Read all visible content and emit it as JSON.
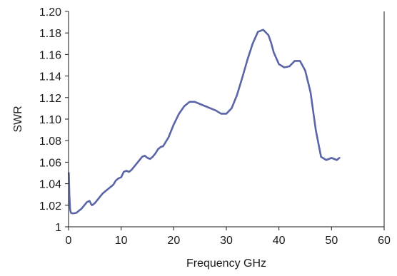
{
  "chart_data": {
    "type": "line",
    "xlabel": "Frequency GHz",
    "ylabel": "SWR",
    "xlim": [
      0,
      60
    ],
    "ylim": [
      1.0,
      1.2
    ],
    "xticks": [
      0,
      10,
      20,
      30,
      40,
      50,
      60
    ],
    "yticks": [
      1,
      1.02,
      1.04,
      1.06,
      1.08,
      1.1,
      1.12,
      1.14,
      1.16,
      1.18,
      1.2
    ],
    "ytick_labels": [
      "1",
      "1.02",
      "1.04",
      "1.06",
      "1.08",
      "1.10",
      "1.12",
      "1.14",
      "1.16",
      "1.18",
      "1.20"
    ],
    "grid": false,
    "legend": "none",
    "series": [
      {
        "color": "#5a65a8",
        "x": [
          0.05,
          0.15,
          0.3,
          0.45,
          0.7,
          1.0,
          1.5,
          2.0,
          2.5,
          3.0,
          3.5,
          4.0,
          4.3,
          4.5,
          5.0,
          5.5,
          6.0,
          6.5,
          7.0,
          7.5,
          8.0,
          8.5,
          9.0,
          9.5,
          10.0,
          10.5,
          11.0,
          11.5,
          12.0,
          12.5,
          13.0,
          13.5,
          14.0,
          14.5,
          15.0,
          15.5,
          16.0,
          16.5,
          17.0,
          17.5,
          18.0,
          19.0,
          20.0,
          21.0,
          22.0,
          23.0,
          24.0,
          25.0,
          26.0,
          27.0,
          28.0,
          29.0,
          30.0,
          31.0,
          32.0,
          33.0,
          34.0,
          35.0,
          36.0,
          37.0,
          38.0,
          38.5,
          39.0,
          40.0,
          41.0,
          42.0,
          43.0,
          44.0,
          45.0,
          46.0,
          47.0,
          48.0,
          49.0,
          50.0,
          50.5,
          51.0,
          51.5
        ],
        "y": [
          1.05,
          1.03,
          1.016,
          1.013,
          1.0125,
          1.0125,
          1.013,
          1.015,
          1.017,
          1.02,
          1.023,
          1.024,
          1.021,
          1.02,
          1.022,
          1.025,
          1.028,
          1.031,
          1.033,
          1.035,
          1.037,
          1.039,
          1.043,
          1.045,
          1.046,
          1.051,
          1.052,
          1.051,
          1.053,
          1.056,
          1.059,
          1.062,
          1.065,
          1.066,
          1.064,
          1.063,
          1.065,
          1.068,
          1.072,
          1.074,
          1.075,
          1.083,
          1.095,
          1.105,
          1.112,
          1.116,
          1.116,
          1.114,
          1.112,
          1.11,
          1.108,
          1.105,
          1.105,
          1.11,
          1.122,
          1.138,
          1.155,
          1.17,
          1.181,
          1.183,
          1.178,
          1.171,
          1.162,
          1.151,
          1.148,
          1.149,
          1.154,
          1.154,
          1.145,
          1.125,
          1.09,
          1.065,
          1.062,
          1.064,
          1.063,
          1.062,
          1.064
        ]
      }
    ]
  }
}
